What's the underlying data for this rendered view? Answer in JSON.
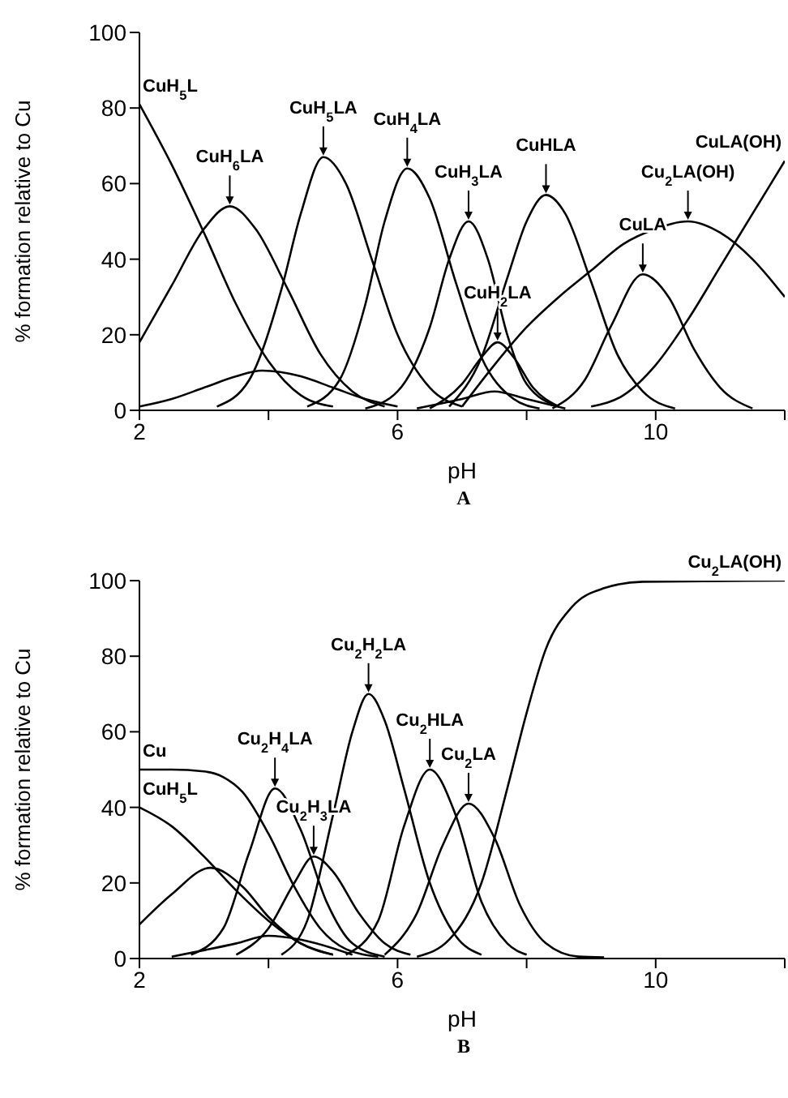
{
  "chart_data": [
    {
      "type": "line",
      "xlabel": "pH",
      "ylabel": "% formation relative to Cu",
      "xlim": [
        2,
        12
      ],
      "xticks": [
        2,
        {
          "value": 4,
          "label": null
        },
        6,
        {
          "value": 8,
          "label": null
        },
        10,
        {
          "value": 12,
          "label": null
        }
      ],
      "ylim": [
        0,
        100
      ],
      "yticks": [
        0,
        20,
        40,
        60,
        80,
        100
      ],
      "annotations": [
        "A"
      ],
      "series": [
        {
          "name": "CuH$_{5}$L",
          "color": "#000000",
          "x": [
            2,
            2.5,
            3,
            3.5,
            4,
            4.5,
            5
          ],
          "values": [
            81,
            65,
            47,
            28,
            13,
            4,
            1
          ]
        },
        {
          "name": "CuH$_{6}$LA",
          "color": "#000000",
          "x": [
            2,
            2.5,
            3,
            3.4,
            3.8,
            4.3,
            4.8,
            5.3,
            5.8
          ],
          "values": [
            18,
            33,
            48,
            54,
            48,
            32,
            15,
            5,
            1
          ]
        },
        {
          "name": "CuH$_{5}$LA",
          "color": "#000000",
          "x": [
            3.2,
            3.7,
            4.2,
            4.5,
            4.85,
            5.2,
            5.6,
            6,
            6.5,
            7
          ],
          "values": [
            1,
            8,
            32,
            52,
            67,
            60,
            40,
            20,
            6,
            1
          ]
        },
        {
          "name": "CuH$_{4}$LA",
          "color": "#000000",
          "x": [
            4.6,
            5.1,
            5.5,
            5.8,
            6.15,
            6.5,
            6.9,
            7.3,
            7.8,
            8.2
          ],
          "values": [
            1,
            8,
            28,
            50,
            64,
            56,
            34,
            14,
            3,
            0.5
          ]
        },
        {
          "name": "CuH$_{3}$LA",
          "color": "#000000",
          "x": [
            5.5,
            6,
            6.5,
            6.8,
            7.1,
            7.4,
            7.7,
            8,
            8.5
          ],
          "values": [
            0.5,
            5,
            22,
            40,
            50,
            40,
            20,
            7,
            1
          ]
        },
        {
          "name": "CuH$_{2}$LA",
          "color": "#000000",
          "x": [
            6.5,
            7,
            7.3,
            7.55,
            7.8,
            8.1,
            8.5
          ],
          "values": [
            0.5,
            7,
            14,
            18,
            14,
            6,
            1
          ]
        },
        {
          "name": "CuHLA",
          "color": "#000000",
          "x": [
            6.8,
            7.3,
            7.7,
            8,
            8.3,
            8.6,
            9,
            9.4,
            9.8,
            10.3
          ],
          "values": [
            1,
            14,
            35,
            50,
            57,
            52,
            34,
            15,
            5,
            0.5
          ]
        },
        {
          "name": "CuLA",
          "color": "#000000",
          "x": [
            8.4,
            8.9,
            9.3,
            9.8,
            10.2,
            10.6,
            11,
            11.5
          ],
          "values": [
            0.5,
            8,
            22,
            36,
            30,
            16,
            6,
            0.5
          ]
        },
        {
          "name": "Cu$_{2}$LA(OH)",
          "color": "#000000",
          "x": [
            7,
            7.5,
            8,
            8.5,
            9,
            9.5,
            10,
            10.5,
            11,
            11.5,
            12
          ],
          "values": [
            1,
            12,
            22,
            30,
            37,
            44,
            48,
            50,
            47,
            40,
            30
          ]
        },
        {
          "name": "CuLA(OH)",
          "color": "#000000",
          "x": [
            9,
            9.5,
            10,
            10.5,
            11,
            11.5,
            12
          ],
          "values": [
            1,
            4,
            12,
            24,
            38,
            52,
            66
          ]
        },
        {
          "color": "#000000",
          "x": [
            2,
            2.5,
            3,
            3.5,
            3.9,
            4.5,
            5,
            5.5,
            6
          ],
          "values": [
            1,
            3,
            6,
            9,
            10.5,
            9,
            6,
            3,
            1
          ]
        },
        {
          "color": "#000000",
          "x": [
            6.3,
            7,
            7.5,
            8,
            8.6
          ],
          "values": [
            0.5,
            3,
            5,
            3,
            0.5
          ]
        }
      ]
    },
    {
      "type": "line",
      "xlabel": "pH",
      "ylabel": "% formation relative to Cu",
      "xlim": [
        2,
        12
      ],
      "xticks": [
        2,
        {
          "value": 4,
          "label": null
        },
        6,
        {
          "value": 8,
          "label": null
        },
        10,
        {
          "value": 12,
          "label": null
        }
      ],
      "ylim": [
        0,
        100
      ],
      "yticks": [
        0,
        20,
        40,
        60,
        80,
        100
      ],
      "annotations": [
        "B"
      ],
      "series": [
        {
          "name": "Cu",
          "color": "#000000",
          "x": [
            2,
            2.5,
            3,
            3.3,
            3.6,
            4,
            4.4,
            4.8,
            5.2,
            5.7
          ],
          "values": [
            50,
            50,
            49.5,
            48,
            44,
            33,
            19,
            8,
            2.5,
            0.5
          ]
        },
        {
          "name": "CuH$_{5}$L",
          "color": "#000000",
          "x": [
            2,
            2.5,
            3,
            3.5,
            4,
            4.5,
            5
          ],
          "values": [
            40,
            35,
            27,
            18,
            10,
            4,
            1
          ]
        },
        {
          "color": "#000000",
          "x": [
            2,
            2.5,
            3.1,
            3.6,
            4,
            4.5,
            5
          ],
          "values": [
            9,
            17,
            24,
            19,
            11,
            4,
            1
          ]
        },
        {
          "name": "Cu$_{2}$H$_{4}$LA",
          "color": "#000000",
          "x": [
            2.8,
            3.3,
            3.7,
            4.1,
            4.5,
            4.9,
            5.3,
            5.8
          ],
          "values": [
            1,
            8,
            28,
            45,
            34,
            15,
            4,
            0.5
          ]
        },
        {
          "name": "Cu$_{2}$H$_{3}$LA",
          "color": "#000000",
          "x": [
            3.5,
            4,
            4.4,
            4.7,
            5,
            5.4,
            5.8,
            6.2
          ],
          "values": [
            1,
            8,
            20,
            27,
            23,
            12,
            4,
            1
          ]
        },
        {
          "name": "Cu$_{2}$H$_{2}$LA",
          "color": "#000000",
          "x": [
            4.2,
            4.6,
            5,
            5.3,
            5.55,
            5.8,
            6.1,
            6.5,
            6.9,
            7.3
          ],
          "values": [
            1,
            10,
            38,
            60,
            70,
            63,
            45,
            20,
            6,
            1
          ]
        },
        {
          "name": "Cu$_{2}$HLA",
          "color": "#000000",
          "x": [
            5.2,
            5.7,
            6.1,
            6.5,
            6.9,
            7.3,
            7.7,
            8
          ],
          "values": [
            1,
            10,
            35,
            50,
            38,
            15,
            4,
            1
          ]
        },
        {
          "name": "Cu$_{2}$LA",
          "color": "#000000",
          "x": [
            5.8,
            6.3,
            6.7,
            7.1,
            7.5,
            7.9,
            8.3,
            8.8,
            9.2
          ],
          "values": [
            1,
            12,
            30,
            41,
            32,
            14,
            4,
            0.5,
            0.3
          ]
        },
        {
          "name": "Cu$_{2}$LA(OH)",
          "color": "#000000",
          "x": [
            6.3,
            6.8,
            7.3,
            7.7,
            8,
            8.3,
            8.7,
            9.2,
            9.8,
            12
          ],
          "values": [
            0.5,
            5,
            20,
            45,
            65,
            82,
            93,
            98,
            99.7,
            100
          ]
        },
        {
          "color": "#000000",
          "x": [
            2.5,
            3.5,
            4,
            4.5,
            5.3
          ],
          "values": [
            0.5,
            4,
            6,
            5,
            1
          ]
        }
      ]
    }
  ]
}
